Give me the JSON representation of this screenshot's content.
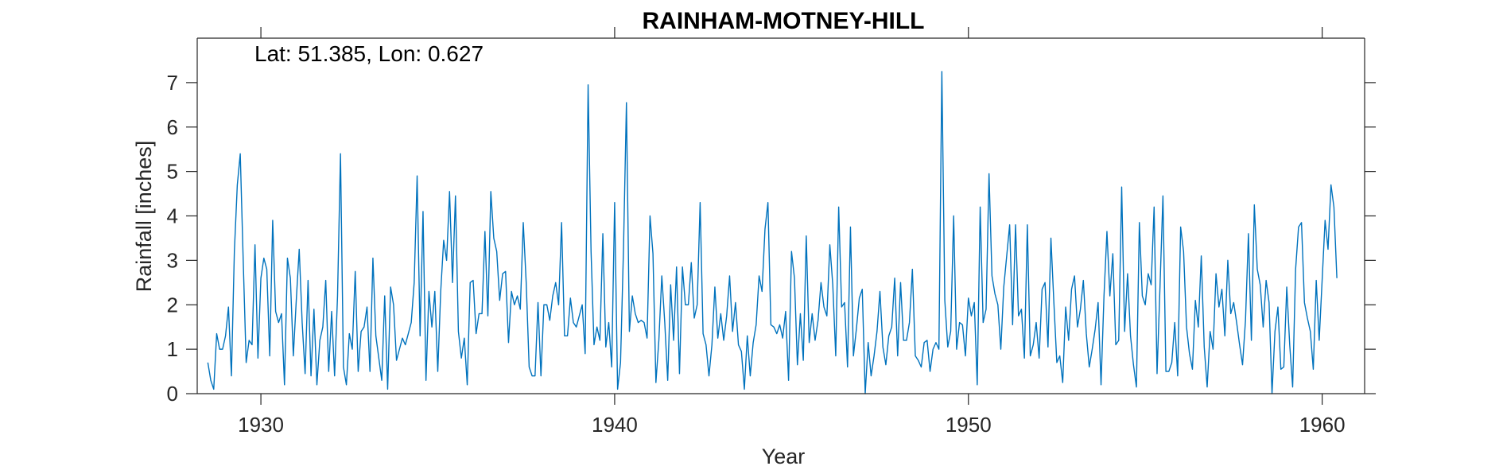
{
  "chart_data": {
    "type": "line",
    "title": "RAINHAM-MOTNEY-HILL",
    "annotation": "Lat: 51.385, Lon: 0.627",
    "xlabel": "Year",
    "ylabel": "Rainfall [inches]",
    "xlim": [
      1928.2,
      1961.2
    ],
    "ylim": [
      0,
      8
    ],
    "xticks": [
      1930,
      1940,
      1950,
      1960
    ],
    "yticks": [
      0,
      1,
      2,
      3,
      4,
      5,
      6,
      7
    ],
    "xtick_labels": [
      "1930",
      "1940",
      "1950",
      "1960"
    ],
    "ytick_labels": [
      "0",
      "1",
      "2",
      "3",
      "4",
      "5",
      "6",
      "7"
    ],
    "grid": false,
    "series": [
      {
        "color": "#0072BD",
        "x_start": 1928.5,
        "x_step_years": 0.08333,
        "values": [
          0.7,
          0.3,
          0.1,
          1.35,
          1.0,
          1.0,
          1.3,
          1.95,
          0.4,
          3.2,
          4.7,
          5.4,
          3.0,
          0.7,
          1.2,
          1.1,
          3.35,
          0.8,
          2.6,
          3.05,
          2.8,
          0.85,
          3.9,
          1.85,
          1.6,
          1.8,
          0.2,
          3.05,
          2.6,
          0.85,
          2.1,
          3.25,
          1.6,
          0.45,
          2.55,
          0.4,
          1.9,
          0.2,
          1.2,
          1.5,
          2.55,
          0.5,
          1.85,
          0.4,
          2.2,
          5.4,
          0.6,
          0.2,
          1.35,
          1.0,
          2.75,
          0.5,
          1.4,
          1.5,
          1.95,
          0.5,
          3.05,
          1.3,
          0.8,
          0.3,
          2.2,
          0.1,
          2.4,
          2.0,
          0.75,
          1.0,
          1.25,
          1.1,
          1.35,
          1.6,
          2.5,
          4.9,
          1.3,
          4.1,
          0.3,
          2.3,
          1.5,
          2.3,
          0.5,
          2.3,
          3.45,
          3.0,
          4.55,
          2.5,
          4.45,
          1.4,
          0.8,
          1.25,
          0.2,
          2.5,
          2.55,
          1.35,
          1.8,
          1.8,
          3.65,
          1.75,
          4.55,
          3.5,
          3.2,
          2.1,
          2.7,
          2.75,
          1.15,
          2.3,
          2.0,
          2.2,
          1.9,
          3.85,
          2.5,
          0.6,
          0.4,
          0.4,
          2.05,
          0.4,
          2.0,
          2.0,
          1.65,
          2.2,
          2.5,
          2.0,
          3.85,
          1.3,
          1.3,
          2.15,
          1.6,
          1.5,
          1.75,
          2.0,
          0.9,
          6.95,
          3.2,
          1.1,
          1.5,
          1.2,
          3.6,
          1.05,
          1.6,
          0.6,
          4.3,
          0.1,
          0.7,
          3.25,
          6.55,
          1.4,
          2.2,
          1.8,
          1.6,
          1.65,
          1.6,
          1.25,
          4.0,
          3.15,
          0.25,
          1.2,
          2.65,
          1.6,
          0.3,
          2.45,
          1.2,
          2.85,
          0.45,
          2.85,
          2.0,
          2.0,
          2.95,
          1.7,
          2.0,
          4.3,
          1.35,
          1.1,
          0.4,
          1.1,
          2.4,
          1.25,
          1.8,
          1.2,
          1.75,
          2.65,
          1.4,
          2.05,
          1.1,
          0.95,
          0.1,
          1.3,
          0.4,
          1.15,
          1.55,
          2.65,
          2.3,
          3.7,
          4.3,
          1.55,
          1.5,
          1.35,
          1.55,
          1.25,
          1.85,
          0.3,
          3.2,
          2.6,
          0.65,
          1.8,
          0.75,
          3.55,
          1.15,
          1.8,
          1.2,
          1.65,
          2.5,
          1.95,
          1.75,
          3.35,
          2.45,
          0.85,
          4.2,
          1.95,
          2.05,
          0.6,
          3.75,
          0.85,
          1.45,
          2.15,
          2.35,
          0.0,
          1.15,
          0.4,
          0.85,
          1.4,
          2.3,
          1.05,
          0.65,
          1.3,
          1.5,
          2.6,
          0.85,
          2.5,
          1.2,
          1.2,
          1.6,
          2.8,
          0.85,
          0.75,
          0.6,
          1.15,
          1.2,
          0.5,
          1.0,
          1.15,
          1.0,
          7.25,
          2.1,
          1.05,
          1.4,
          4.0,
          1.0,
          1.6,
          1.55,
          0.85,
          2.15,
          1.75,
          2.05,
          0.2,
          4.2,
          1.6,
          1.9,
          4.95,
          2.65,
          2.25,
          2.0,
          1.0,
          2.4,
          3.1,
          3.8,
          1.55,
          3.8,
          1.75,
          1.9,
          0.8,
          3.8,
          0.85,
          1.1,
          1.6,
          0.8,
          2.35,
          2.5,
          1.05,
          3.5,
          2.05,
          0.7,
          0.85,
          0.25,
          1.95,
          1.2,
          2.35,
          2.65,
          1.5,
          1.9,
          2.55,
          1.35,
          0.6,
          1.0,
          1.45,
          2.05,
          0.2,
          2.2,
          3.65,
          2.2,
          3.15,
          1.1,
          1.2,
          4.65,
          1.4,
          2.7,
          1.3,
          0.65,
          0.15,
          3.85,
          2.2,
          2.0,
          2.7,
          2.45,
          4.2,
          0.45,
          2.4,
          4.45,
          0.5,
          0.5,
          0.7,
          1.6,
          0.4,
          3.75,
          3.2,
          1.5,
          0.9,
          0.55,
          2.1,
          1.5,
          3.1,
          1.05,
          0.15,
          1.4,
          1.0,
          2.7,
          1.95,
          2.35,
          1.3,
          3.0,
          1.8,
          2.05,
          1.6,
          1.1,
          0.65,
          1.65,
          3.6,
          1.2,
          4.25,
          2.8,
          2.45,
          1.5,
          2.55,
          2.05,
          0.0,
          1.4,
          1.95,
          0.55,
          0.6,
          2.4,
          1.1,
          0.15,
          2.8,
          3.75,
          3.85,
          2.05,
          1.7,
          1.4,
          0.55,
          2.55,
          1.2,
          2.55,
          3.9,
          3.25,
          4.7,
          4.2,
          2.6
        ]
      }
    ]
  }
}
